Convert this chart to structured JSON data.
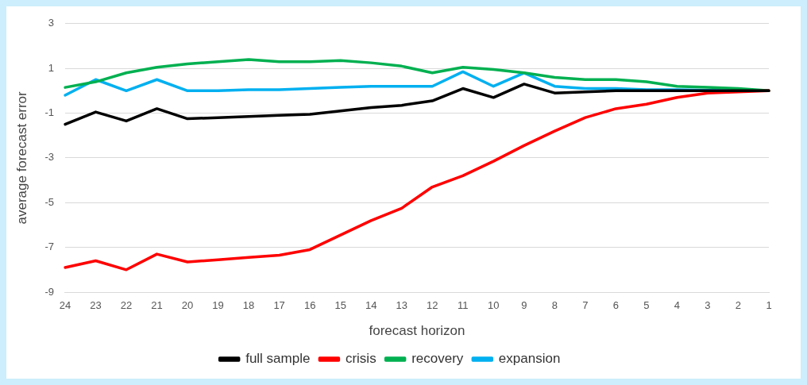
{
  "chart_data": {
    "type": "line",
    "xlabel": "forecast horizon",
    "ylabel": "average forecast error",
    "categories": [
      "24",
      "23",
      "22",
      "21",
      "20",
      "19",
      "18",
      "17",
      "16",
      "15",
      "14",
      "13",
      "12",
      "11",
      "10",
      "9",
      "8",
      "7",
      "6",
      "5",
      "4",
      "3",
      "2",
      "1"
    ],
    "series": [
      {
        "name": "full sample",
        "color": "#000000",
        "values": [
          -1.5,
          -0.95,
          -1.35,
          -0.8,
          -1.25,
          -1.2,
          -1.15,
          -1.1,
          -1.05,
          -0.9,
          -0.75,
          -0.65,
          -0.45,
          0.1,
          -0.3,
          0.3,
          -0.1,
          -0.05,
          0,
          0,
          0,
          0,
          0,
          0
        ]
      },
      {
        "name": "crisis",
        "color": "#ff0000",
        "values": [
          -7.9,
          -7.6,
          -8.0,
          -7.3,
          -7.65,
          -7.55,
          -7.45,
          -7.35,
          -7.1,
          -6.45,
          -5.8,
          -5.25,
          -4.3,
          -3.8,
          -3.15,
          -2.45,
          -1.8,
          -1.2,
          -0.8,
          -0.6,
          -0.3,
          -0.1,
          -0.05,
          0
        ]
      },
      {
        "name": "recovery",
        "color": "#00b050",
        "values": [
          0.15,
          0.4,
          0.8,
          1.05,
          1.2,
          1.3,
          1.4,
          1.3,
          1.3,
          1.35,
          1.25,
          1.1,
          0.8,
          1.05,
          0.95,
          0.8,
          0.6,
          0.5,
          0.5,
          0.4,
          0.2,
          0.15,
          0.1,
          0
        ]
      },
      {
        "name": "expansion",
        "color": "#00b0f0",
        "values": [
          -0.2,
          0.5,
          0,
          0.5,
          0,
          0,
          0.05,
          0.05,
          0.1,
          0.15,
          0.2,
          0.2,
          0.2,
          0.85,
          0.2,
          0.8,
          0.2,
          0.1,
          0.1,
          0.05,
          0.05,
          0.02,
          0,
          0
        ]
      }
    ],
    "ylim": [
      -9,
      3
    ],
    "yticks": [
      -9,
      -7,
      -5,
      -3,
      -1,
      1,
      3
    ],
    "grid": "y",
    "legend": "bottom",
    "marker": "none",
    "line_style": "solid"
  }
}
